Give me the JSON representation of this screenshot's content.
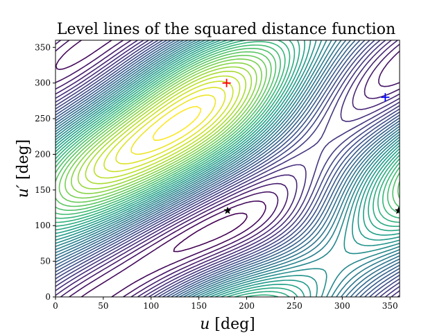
{
  "chart_data": {
    "type": "contour",
    "title": "Level lines of the squared distance function",
    "xlabel_var": "u",
    "ylabel_var": "u′",
    "unit": "[deg]",
    "xlim": [
      0,
      360
    ],
    "ylim": [
      0,
      360
    ],
    "xticks": [
      0,
      50,
      100,
      150,
      200,
      250,
      300,
      350
    ],
    "yticks": [
      0,
      50,
      100,
      150,
      200,
      250,
      300,
      350
    ],
    "colormap": "viridis",
    "levels": 40,
    "markers": [
      {
        "type": "plus",
        "color": "#ff0000",
        "x": 179,
        "y": 300
      },
      {
        "type": "plus",
        "color": "#0000ff",
        "x": 345,
        "y": 280
      },
      {
        "type": "star",
        "color": "#000000",
        "x": 180,
        "y": 121
      },
      {
        "type": "star",
        "color": "#000000",
        "x": 359,
        "y": 121
      }
    ]
  }
}
